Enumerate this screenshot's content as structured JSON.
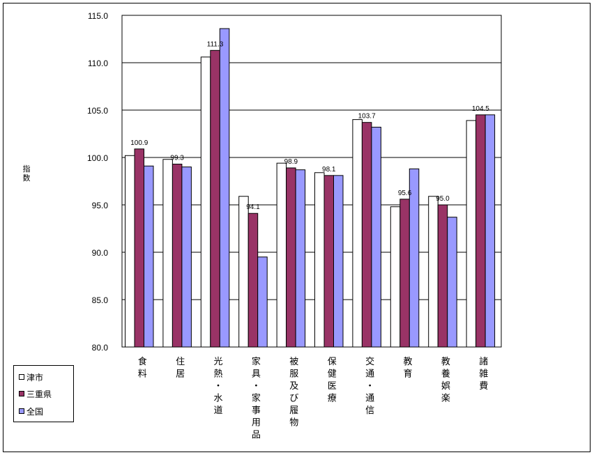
{
  "chart_data": {
    "type": "bar",
    "ylabel": "指数",
    "ylim": [
      80,
      115
    ],
    "yticks": [
      "80.0",
      "85.0",
      "90.0",
      "95.0",
      "100.0",
      "105.0",
      "110.0",
      "115.0"
    ],
    "ytick_values": [
      80,
      85,
      90,
      95,
      100,
      105,
      110,
      115
    ],
    "grid": true,
    "legend_position": "bottom-left",
    "categories": [
      "食料",
      "住居",
      "光熱・水道",
      "家具・家事用品",
      "被服及び履物",
      "保健医療",
      "交通・通信",
      "教育",
      "教養娯楽",
      "諸雑費"
    ],
    "series": [
      {
        "name": "津市",
        "color": "#ffffff",
        "values": [
          100.2,
          99.8,
          110.6,
          95.9,
          99.4,
          98.4,
          104.0,
          94.8,
          95.9,
          103.9
        ]
      },
      {
        "name": "三重県",
        "color": "#993366",
        "values": [
          100.9,
          99.3,
          111.3,
          94.1,
          98.9,
          98.1,
          103.7,
          95.6,
          95.0,
          104.5
        ]
      },
      {
        "name": "全国",
        "color": "#9999ff",
        "values": [
          99.1,
          99.0,
          113.6,
          89.5,
          98.7,
          98.1,
          103.2,
          98.8,
          93.7,
          104.5
        ]
      }
    ],
    "data_labels": {
      "series": "三重県",
      "labels": [
        "100.9",
        "99.3",
        "111.3",
        "94.1",
        "98.9",
        "98.1",
        "103.7",
        "95.6",
        "95.0",
        "104.5"
      ]
    }
  }
}
